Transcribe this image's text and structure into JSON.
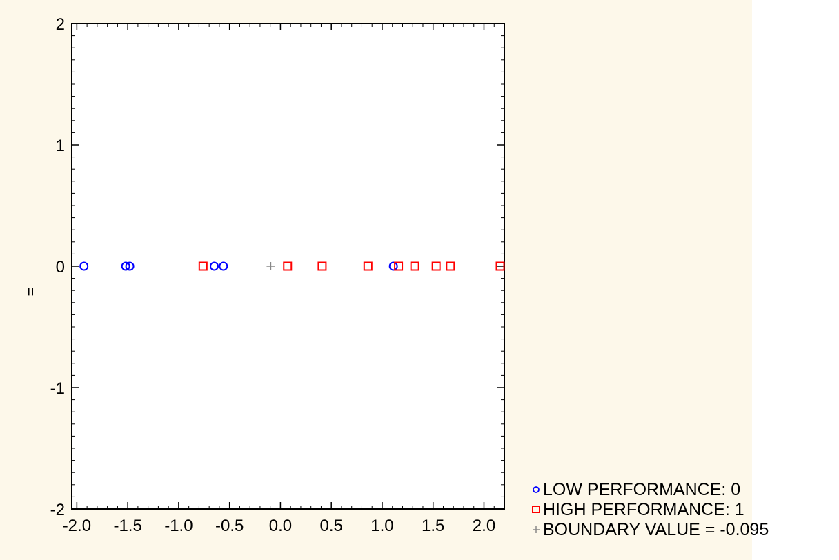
{
  "chart_data": {
    "type": "scatter",
    "title": "",
    "xlabel": "",
    "ylabel": "=",
    "xlim": [
      -2.05,
      2.2
    ],
    "ylim": [
      -2,
      2
    ],
    "x_ticks": [
      "-2.0",
      "-1.5",
      "-1.0",
      "-0.5",
      "0.0",
      "0.5",
      "1.0",
      "1.5",
      "2.0"
    ],
    "x_tick_values": [
      -2.0,
      -1.5,
      -1.0,
      -0.5,
      0.0,
      0.5,
      1.0,
      1.5,
      2.0
    ],
    "y_ticks": [
      "2",
      "1",
      "0",
      "-1",
      "-2"
    ],
    "y_tick_values": [
      2,
      1,
      0,
      -1,
      -2
    ],
    "grid": true,
    "legend_position": "bottom-right",
    "series": [
      {
        "name": "LOW PERFORMANCE: 0",
        "marker": "circle",
        "color": "#0000ff",
        "points": [
          [
            -1.93,
            0
          ],
          [
            -1.52,
            0
          ],
          [
            -1.48,
            0
          ],
          [
            -0.65,
            0
          ],
          [
            -0.56,
            0
          ],
          [
            1.11,
            0
          ]
        ]
      },
      {
        "name": "HIGH PERFORMANCE: 1",
        "marker": "square",
        "color": "#ff0000",
        "points": [
          [
            -0.76,
            0
          ],
          [
            0.07,
            0
          ],
          [
            0.41,
            0
          ],
          [
            0.86,
            0
          ],
          [
            1.16,
            0
          ],
          [
            1.32,
            0
          ],
          [
            1.53,
            0
          ],
          [
            1.67,
            0
          ],
          [
            2.16,
            0
          ],
          [
            2.2,
            0
          ]
        ]
      },
      {
        "name": "BOUNDARY VALUE = -0.095",
        "marker": "plus",
        "color": "#888888",
        "points": [
          [
            -0.095,
            0
          ]
        ]
      }
    ]
  }
}
